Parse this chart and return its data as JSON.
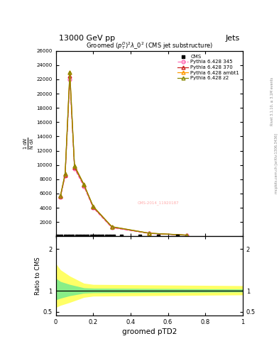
{
  "title_top": "13000 GeV pp",
  "title_top_right": "Jets",
  "plot_title": "Groomed $(p_T^D)^2\\lambda\\_0^2$ (CMS jet substructure)",
  "watermark": "CMS-2014_11920187",
  "xlabel": "groomed pTD2",
  "ylabel_ratio": "Ratio to CMS",
  "right_label_top": "Rivet 3.1.10, ≥ 3.1M events",
  "right_label_bot": "mcplots.cern.ch [arXiv:1306.3436]",
  "cms_x": [
    0.01,
    0.03,
    0.05,
    0.07,
    0.09,
    0.11,
    0.13,
    0.15,
    0.17,
    0.19,
    0.21,
    0.23,
    0.25,
    0.27,
    0.29,
    0.31,
    0.35,
    0.45,
    0.55,
    0.65
  ],
  "py345_x": [
    0.025,
    0.05,
    0.075,
    0.1,
    0.15,
    0.2,
    0.3,
    0.5,
    0.7
  ],
  "py345_y": [
    5500,
    8500,
    22000,
    9500,
    7000,
    4000,
    1200,
    400,
    150
  ],
  "py370_x": [
    0.025,
    0.05,
    0.075,
    0.1,
    0.15,
    0.2,
    0.3,
    0.5,
    0.7
  ],
  "py370_y": [
    5600,
    8600,
    22500,
    9700,
    7200,
    4100,
    1300,
    420,
    160
  ],
  "pyambt1_x": [
    0.025,
    0.05,
    0.075,
    0.1,
    0.15,
    0.2,
    0.3,
    0.5,
    0.7
  ],
  "pyambt1_y": [
    5700,
    8800,
    23000,
    9900,
    7300,
    4200,
    1350,
    440,
    170
  ],
  "pyz2_x": [
    0.025,
    0.05,
    0.075,
    0.1,
    0.15,
    0.2,
    0.3,
    0.5,
    0.7
  ],
  "pyz2_y": [
    5700,
    8800,
    23000,
    9900,
    7300,
    4200,
    1350,
    440,
    170
  ],
  "ylim_main": [
    0,
    26000
  ],
  "xlim_main": [
    0,
    1.0
  ],
  "ylim_ratio": [
    0.4,
    2.3
  ],
  "color_345": "#FF69B4",
  "color_370": "#CC2222",
  "color_ambt1": "#FF9900",
  "color_z2": "#888800",
  "bg_color": "#ffffff"
}
